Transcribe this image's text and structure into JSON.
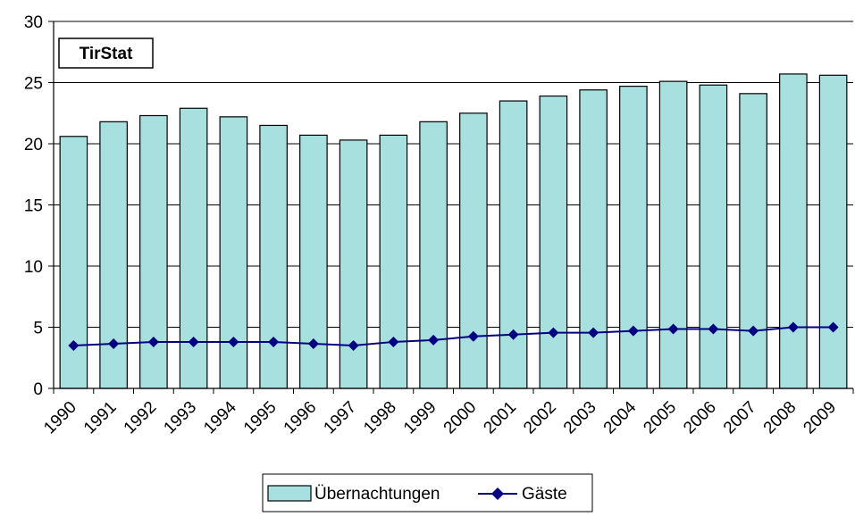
{
  "chart_data": {
    "type": "bar",
    "annotation": "TirStat",
    "categories": [
      "1990",
      "1991",
      "1992",
      "1993",
      "1994",
      "1995",
      "1996",
      "1997",
      "1998",
      "1999",
      "2000",
      "2001",
      "2002",
      "2003",
      "2004",
      "2005",
      "2006",
      "2007",
      "2008",
      "2009"
    ],
    "series": [
      {
        "name": "Übernachtungen",
        "type": "bar",
        "color": "#a8e0e0",
        "values": [
          20.6,
          21.8,
          22.3,
          22.9,
          22.2,
          21.5,
          20.7,
          20.3,
          20.7,
          21.8,
          22.5,
          23.5,
          23.9,
          24.4,
          24.7,
          25.1,
          24.8,
          24.1,
          25.7,
          25.6
        ]
      },
      {
        "name": "Gäste",
        "type": "line",
        "color": "#000080",
        "values": [
          3.5,
          3.65,
          3.8,
          3.8,
          3.8,
          3.8,
          3.65,
          3.5,
          3.8,
          3.95,
          4.25,
          4.4,
          4.55,
          4.55,
          4.7,
          4.85,
          4.85,
          4.7,
          5.0,
          5.0
        ]
      }
    ],
    "yticks": [
      "0",
      "5",
      "10",
      "15",
      "20",
      "25",
      "30"
    ],
    "ylim": [
      0,
      30
    ],
    "grid": true,
    "legend": "bottom-center"
  }
}
